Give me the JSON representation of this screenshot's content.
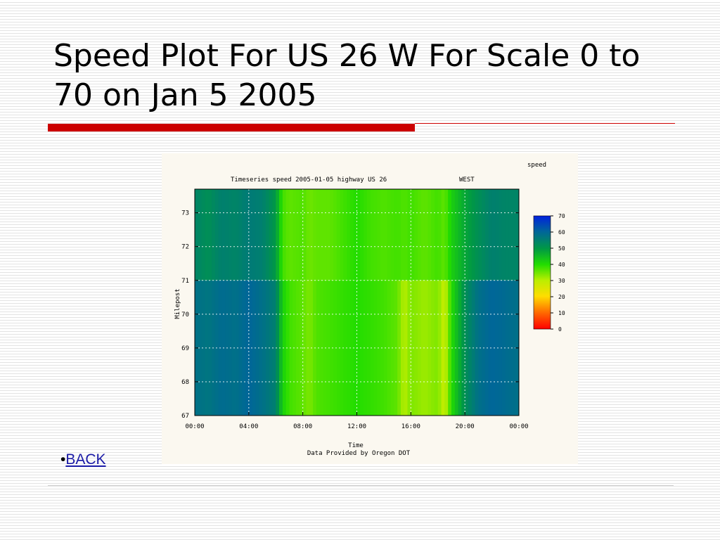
{
  "slide": {
    "title": "Speed Plot For US 26 W For Scale 0 to 70 on Jan 5 2005",
    "back_bullet": "•",
    "back_label": "BACK"
  },
  "chart_data": {
    "type": "heatmap",
    "title": "Timeseries speed 2005-01-05 highway US 26",
    "direction": "WEST",
    "legend_title": "speed",
    "xlabel": "Time",
    "ylabel": "Milepost",
    "caption": "Data Provided by Oregon DOT",
    "x_ticks": [
      "00:00",
      "04:00",
      "08:00",
      "12:00",
      "16:00",
      "20:00",
      "00:00"
    ],
    "x_range_hours": [
      0,
      24
    ],
    "y_ticks": [
      67,
      68,
      69,
      70,
      71,
      72,
      73
    ],
    "y_range": [
      67,
      73.7
    ],
    "colorbar_ticks": [
      0,
      10,
      20,
      30,
      40,
      50,
      60,
      70
    ],
    "color_range": [
      0,
      70
    ],
    "grid": true,
    "colors": {
      "high_speed": "#0033cc",
      "mid_speed": "#00cc33",
      "low_speed": "#ff0000"
    },
    "speed_profile": {
      "upper_segment_milepost_from": 71,
      "lower_segment_milepost_to": 71,
      "hours": [
        0,
        1,
        2,
        3,
        4,
        5,
        6,
        6.5,
        7,
        8,
        8.5,
        9,
        10,
        11,
        12,
        13,
        14,
        15,
        15.5,
        16,
        17,
        18,
        18.5,
        19,
        20,
        21,
        22,
        23,
        24
      ],
      "upper_segment_speed": [
        54,
        52,
        55,
        54,
        56,
        55,
        50,
        38,
        36,
        37,
        35,
        36,
        36,
        38,
        40,
        38,
        37,
        38,
        37,
        38,
        36,
        38,
        36,
        42,
        48,
        52,
        55,
        54,
        54
      ],
      "lower_segment_speed": [
        58,
        57,
        59,
        58,
        60,
        58,
        55,
        42,
        38,
        36,
        34,
        37,
        38,
        39,
        40,
        39,
        38,
        36,
        30,
        34,
        32,
        34,
        28,
        40,
        52,
        58,
        60,
        59,
        58
      ]
    }
  }
}
